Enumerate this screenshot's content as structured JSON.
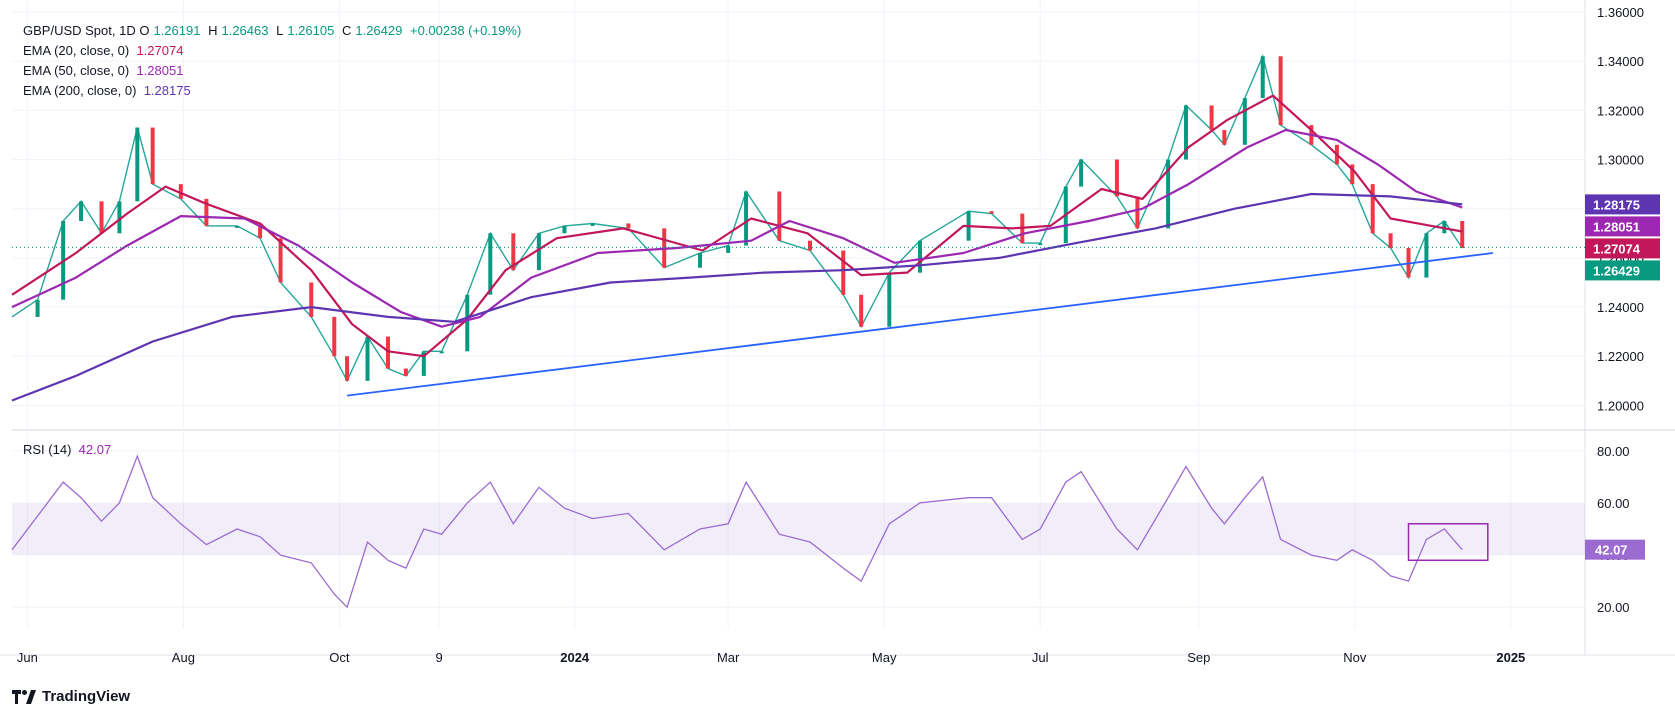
{
  "header": {
    "symbol": "GBP/USD Spot, 1D",
    "ohlc": {
      "o_label": "O",
      "o": "1.26191",
      "h_label": "H",
      "h": "1.26463",
      "l_label": "L",
      "l": "1.26105",
      "c_label": "C",
      "c": "1.26429",
      "change": "+0.00238 (+0.19%)"
    },
    "indicators": [
      {
        "label": "EMA (20, close, 0)",
        "value": "1.27074",
        "color": "#c2185b"
      },
      {
        "label": "EMA (50, close, 0)",
        "value": "1.28051",
        "color": "#9c27b0"
      },
      {
        "label": "EMA (200, close, 0)",
        "value": "1.28175",
        "color": "#5e35b1"
      }
    ],
    "rsi_label": "RSI (14)",
    "rsi_value": "42.07"
  },
  "footer": {
    "brand": "TradingView"
  },
  "chart_data": [
    {
      "type": "line",
      "pane": "price",
      "ylim": [
        1.19,
        1.36
      ],
      "y_ticks": [
        "1.20000",
        "1.22000",
        "1.24000",
        "1.26000",
        "1.28000",
        "1.30000",
        "1.32000",
        "1.34000",
        "1.36000"
      ],
      "x_ticks": [
        "Jun",
        "Aug",
        "Oct",
        "9",
        "2024",
        "Mar",
        "May",
        "Jul",
        "Sep",
        "Nov",
        "2025"
      ],
      "x_tick_dates": [
        "2023-06-01",
        "2023-08-01",
        "2023-10-01",
        "2023-11-09",
        "2024-01-01",
        "2024-03-01",
        "2024-05-01",
        "2024-07-01",
        "2024-09-01",
        "2024-11-01",
        "2025-01-01"
      ],
      "x_range": [
        "2023-05-26",
        "2025-01-30"
      ],
      "close_series": {
        "name": "GBP/USD close",
        "points": [
          [
            "2023-05-26",
            1.236
          ],
          [
            "2023-06-05",
            1.243
          ],
          [
            "2023-06-15",
            1.275
          ],
          [
            "2023-06-22",
            1.283
          ],
          [
            "2023-06-30",
            1.27
          ],
          [
            "2023-07-07",
            1.283
          ],
          [
            "2023-07-14",
            1.313
          ],
          [
            "2023-07-20",
            1.29
          ],
          [
            "2023-07-31",
            1.284
          ],
          [
            "2023-08-10",
            1.273
          ],
          [
            "2023-08-22",
            1.273
          ],
          [
            "2023-08-31",
            1.268
          ],
          [
            "2023-09-08",
            1.25
          ],
          [
            "2023-09-20",
            1.236
          ],
          [
            "2023-09-29",
            1.22
          ],
          [
            "2023-10-04",
            1.21
          ],
          [
            "2023-10-12",
            1.228
          ],
          [
            "2023-10-20",
            1.215
          ],
          [
            "2023-10-27",
            1.212
          ],
          [
            "2023-11-03",
            1.222
          ],
          [
            "2023-11-10",
            1.222
          ],
          [
            "2023-11-20",
            1.245
          ],
          [
            "2023-11-29",
            1.27
          ],
          [
            "2023-12-08",
            1.255
          ],
          [
            "2023-12-18",
            1.27
          ],
          [
            "2023-12-28",
            1.273
          ],
          [
            "2024-01-08",
            1.274
          ],
          [
            "2024-01-22",
            1.272
          ],
          [
            "2024-02-05",
            1.256
          ],
          [
            "2024-02-19",
            1.262
          ],
          [
            "2024-03-01",
            1.265
          ],
          [
            "2024-03-08",
            1.287
          ],
          [
            "2024-03-21",
            1.267
          ],
          [
            "2024-04-02",
            1.263
          ],
          [
            "2024-04-15",
            1.245
          ],
          [
            "2024-04-22",
            1.232
          ],
          [
            "2024-05-03",
            1.254
          ],
          [
            "2024-05-15",
            1.267
          ],
          [
            "2024-06-03",
            1.279
          ],
          [
            "2024-06-12",
            1.278
          ],
          [
            "2024-06-24",
            1.266
          ],
          [
            "2024-07-01",
            1.266
          ],
          [
            "2024-07-11",
            1.289
          ],
          [
            "2024-07-17",
            1.3
          ],
          [
            "2024-07-31",
            1.285
          ],
          [
            "2024-08-08",
            1.272
          ],
          [
            "2024-08-20",
            1.3
          ],
          [
            "2024-08-27",
            1.322
          ],
          [
            "2024-09-06",
            1.312
          ],
          [
            "2024-09-11",
            1.306
          ],
          [
            "2024-09-19",
            1.325
          ],
          [
            "2024-09-26",
            1.342
          ],
          [
            "2024-10-03",
            1.314
          ],
          [
            "2024-10-15",
            1.306
          ],
          [
            "2024-10-25",
            1.298
          ],
          [
            "2024-10-31",
            1.29
          ],
          [
            "2024-11-08",
            1.27
          ],
          [
            "2024-11-15",
            1.264
          ],
          [
            "2024-11-22",
            1.252
          ],
          [
            "2024-11-29",
            1.27
          ],
          [
            "2024-12-06",
            1.275
          ],
          [
            "2024-12-13",
            1.264
          ]
        ]
      },
      "series": [
        {
          "name": "EMA (20, close, 0)",
          "color": "#c2185b",
          "points": [
            [
              "2023-05-26",
              1.245
            ],
            [
              "2023-06-20",
              1.262
            ],
            [
              "2023-07-10",
              1.278
            ],
            [
              "2023-07-25",
              1.289
            ],
            [
              "2023-08-10",
              1.282
            ],
            [
              "2023-08-31",
              1.274
            ],
            [
              "2023-09-20",
              1.255
            ],
            [
              "2023-10-06",
              1.233
            ],
            [
              "2023-10-20",
              1.222
            ],
            [
              "2023-11-03",
              1.22
            ],
            [
              "2023-11-20",
              1.235
            ],
            [
              "2023-12-05",
              1.255
            ],
            [
              "2023-12-25",
              1.268
            ],
            [
              "2024-01-20",
              1.272
            ],
            [
              "2024-02-20",
              1.263
            ],
            [
              "2024-03-10",
              1.276
            ],
            [
              "2024-04-01",
              1.27
            ],
            [
              "2024-04-22",
              1.253
            ],
            [
              "2024-05-10",
              1.254
            ],
            [
              "2024-06-01",
              1.273
            ],
            [
              "2024-06-20",
              1.272
            ],
            [
              "2024-07-05",
              1.273
            ],
            [
              "2024-07-25",
              1.288
            ],
            [
              "2024-08-10",
              1.284
            ],
            [
              "2024-08-28",
              1.305
            ],
            [
              "2024-09-12",
              1.316
            ],
            [
              "2024-09-30",
              1.326
            ],
            [
              "2024-10-15",
              1.312
            ],
            [
              "2024-11-01",
              1.295
            ],
            [
              "2024-11-15",
              1.276
            ],
            [
              "2024-12-01",
              1.273
            ],
            [
              "2024-12-13",
              1.27074
            ]
          ]
        },
        {
          "name": "EMA (50, close, 0)",
          "color": "#9c27b0",
          "points": [
            [
              "2023-05-26",
              1.24
            ],
            [
              "2023-06-20",
              1.252
            ],
            [
              "2023-07-10",
              1.265
            ],
            [
              "2023-07-31",
              1.277
            ],
            [
              "2023-08-25",
              1.276
            ],
            [
              "2023-09-15",
              1.265
            ],
            [
              "2023-10-06",
              1.25
            ],
            [
              "2023-10-25",
              1.238
            ],
            [
              "2023-11-10",
              1.232
            ],
            [
              "2023-11-25",
              1.236
            ],
            [
              "2023-12-15",
              1.252
            ],
            [
              "2024-01-10",
              1.262
            ],
            [
              "2024-02-10",
              1.264
            ],
            [
              "2024-03-10",
              1.267
            ],
            [
              "2024-03-25",
              1.275
            ],
            [
              "2024-04-15",
              1.268
            ],
            [
              "2024-05-05",
              1.258
            ],
            [
              "2024-06-01",
              1.262
            ],
            [
              "2024-06-25",
              1.27
            ],
            [
              "2024-07-20",
              1.275
            ],
            [
              "2024-08-10",
              1.28
            ],
            [
              "2024-08-28",
              1.29
            ],
            [
              "2024-09-20",
              1.305
            ],
            [
              "2024-10-05",
              1.312
            ],
            [
              "2024-10-25",
              1.308
            ],
            [
              "2024-11-10",
              1.298
            ],
            [
              "2024-11-25",
              1.287
            ],
            [
              "2024-12-13",
              1.28051
            ]
          ]
        },
        {
          "name": "EMA (200, close, 0)",
          "color": "#5e35b1",
          "points": [
            [
              "2023-05-26",
              1.202
            ],
            [
              "2023-06-20",
              1.212
            ],
            [
              "2023-07-20",
              1.226
            ],
            [
              "2023-08-20",
              1.236
            ],
            [
              "2023-09-20",
              1.24
            ],
            [
              "2023-10-20",
              1.236
            ],
            [
              "2023-11-15",
              1.234
            ],
            [
              "2023-12-15",
              1.244
            ],
            [
              "2024-01-15",
              1.25
            ],
            [
              "2024-02-15",
              1.252
            ],
            [
              "2024-03-15",
              1.254
            ],
            [
              "2024-04-15",
              1.255
            ],
            [
              "2024-05-15",
              1.257
            ],
            [
              "2024-06-15",
              1.26
            ],
            [
              "2024-07-15",
              1.266
            ],
            [
              "2024-08-15",
              1.272
            ],
            [
              "2024-09-15",
              1.28
            ],
            [
              "2024-10-15",
              1.286
            ],
            [
              "2024-11-15",
              1.285
            ],
            [
              "2024-12-13",
              1.28175
            ]
          ]
        },
        {
          "name": "Trendline",
          "color": "#2962ff",
          "points": [
            [
              "2023-10-04",
              1.204
            ],
            [
              "2024-12-25",
              1.262
            ]
          ]
        }
      ],
      "price_labels": [
        {
          "value": "1.28175",
          "y": 1.28175,
          "color": "#5e35b1"
        },
        {
          "value": "1.28051",
          "y": 1.28051,
          "color": "#9c27b0"
        },
        {
          "value": "1.27074",
          "y": 1.27074,
          "color": "#c2185b"
        },
        {
          "value": "1.26429",
          "y": 1.26429,
          "color": "#089981"
        }
      ]
    },
    {
      "type": "line",
      "pane": "rsi",
      "ylim": [
        12,
        88
      ],
      "y_ticks": [
        "20.00",
        "40.00",
        "60.00",
        "80.00"
      ],
      "bands": [
        40,
        60
      ],
      "series": [
        {
          "name": "RSI (14)",
          "color": "#9c6bd1",
          "points": [
            [
              "2023-05-26",
              42
            ],
            [
              "2023-06-05",
              55
            ],
            [
              "2023-06-15",
              68
            ],
            [
              "2023-06-22",
              62
            ],
            [
              "2023-06-30",
              53
            ],
            [
              "2023-07-07",
              60
            ],
            [
              "2023-07-14",
              78
            ],
            [
              "2023-07-20",
              62
            ],
            [
              "2023-07-31",
              52
            ],
            [
              "2023-08-10",
              44
            ],
            [
              "2023-08-22",
              50
            ],
            [
              "2023-08-31",
              47
            ],
            [
              "2023-09-08",
              40
            ],
            [
              "2023-09-20",
              37
            ],
            [
              "2023-09-29",
              25
            ],
            [
              "2023-10-04",
              20
            ],
            [
              "2023-10-12",
              45
            ],
            [
              "2023-10-20",
              38
            ],
            [
              "2023-10-27",
              35
            ],
            [
              "2023-11-03",
              50
            ],
            [
              "2023-11-10",
              48
            ],
            [
              "2023-11-20",
              60
            ],
            [
              "2023-11-29",
              68
            ],
            [
              "2023-12-08",
              52
            ],
            [
              "2023-12-18",
              66
            ],
            [
              "2023-12-28",
              58
            ],
            [
              "2024-01-08",
              54
            ],
            [
              "2024-01-22",
              56
            ],
            [
              "2024-02-05",
              42
            ],
            [
              "2024-02-19",
              50
            ],
            [
              "2024-03-01",
              52
            ],
            [
              "2024-03-08",
              68
            ],
            [
              "2024-03-21",
              48
            ],
            [
              "2024-04-02",
              45
            ],
            [
              "2024-04-15",
              35
            ],
            [
              "2024-04-22",
              30
            ],
            [
              "2024-05-03",
              52
            ],
            [
              "2024-05-15",
              60
            ],
            [
              "2024-06-03",
              62
            ],
            [
              "2024-06-12",
              62
            ],
            [
              "2024-06-24",
              46
            ],
            [
              "2024-07-01",
              50
            ],
            [
              "2024-07-11",
              68
            ],
            [
              "2024-07-17",
              72
            ],
            [
              "2024-07-31",
              50
            ],
            [
              "2024-08-08",
              42
            ],
            [
              "2024-08-20",
              62
            ],
            [
              "2024-08-27",
              74
            ],
            [
              "2024-09-06",
              58
            ],
            [
              "2024-09-11",
              52
            ],
            [
              "2024-09-19",
              62
            ],
            [
              "2024-09-26",
              70
            ],
            [
              "2024-10-03",
              46
            ],
            [
              "2024-10-15",
              40
            ],
            [
              "2024-10-25",
              38
            ],
            [
              "2024-10-31",
              42
            ],
            [
              "2024-11-08",
              38
            ],
            [
              "2024-11-15",
              32
            ],
            [
              "2024-11-22",
              30
            ],
            [
              "2024-11-29",
              46
            ],
            [
              "2024-12-06",
              50
            ],
            [
              "2024-12-13",
              42.07
            ]
          ]
        }
      ],
      "annotation_box": {
        "x": [
          "2024-11-22",
          "2024-12-23"
        ],
        "y": [
          38,
          52
        ],
        "color": "#9c27b0"
      }
    }
  ]
}
